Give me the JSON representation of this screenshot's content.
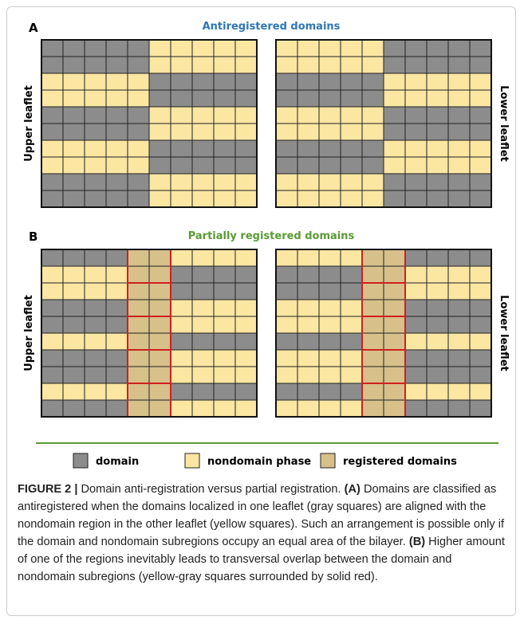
{
  "figure": {
    "panel_a": {
      "label": "A",
      "title": "Antiregistered domains",
      "left_label": "Upper leaflet",
      "right_label": "Lower leaflet"
    },
    "panel_b": {
      "label": "B",
      "title": "Partially registered domains",
      "left_label": "Upper leaflet",
      "right_label": "Lower leaflet"
    },
    "legend": [
      "domain",
      "nondomain phase",
      "registered domains"
    ]
  },
  "caption": {
    "label": "FIGURE 2 |",
    "parts": [
      " Domain anti-registration versus partial registration. ",
      "(A)",
      " Domains are classified as antiregistered when the domains localized in one leaflet (gray squares) are aligned with the nondomain region in the other leaflet (yellow squares). Such an arrangement is possible only if the domain and nondomain subregions occupy an equal area of the bilayer. ",
      "(B)",
      " Higher amount of one of the regions inevitably leads to transversal overlap between the domain and nondomain subregions (yellow-gray squares surrounded by solid red)."
    ]
  }
}
